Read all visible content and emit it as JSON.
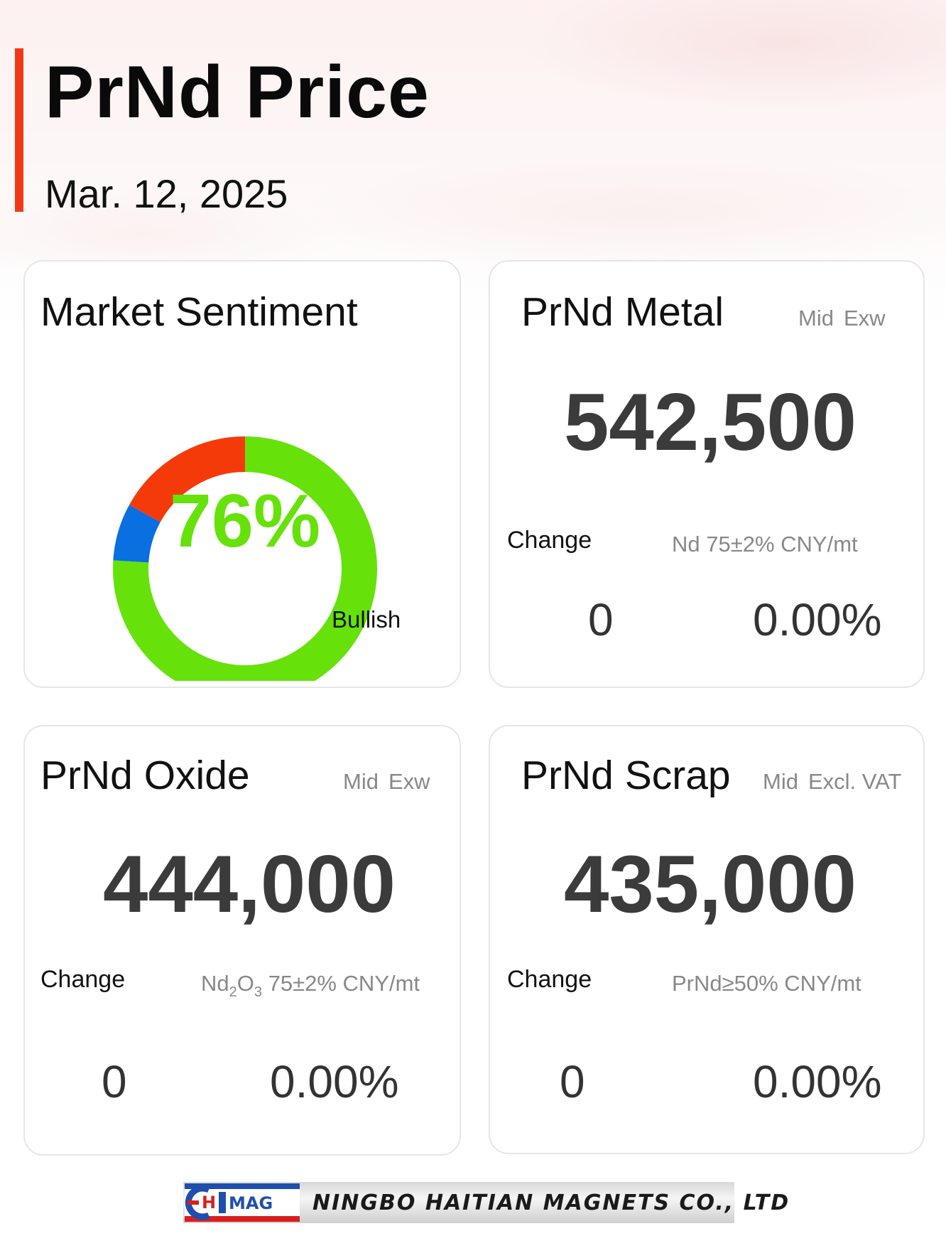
{
  "header": {
    "title": "PrNd Price",
    "date": "Mar. 12, 2025"
  },
  "sentiment": {
    "title": "Market Sentiment",
    "percent_label": "76%",
    "legend_label": "Bullish",
    "segments": [
      {
        "label": "Bullish",
        "value": 76,
        "color": "#66e20a"
      },
      {
        "label": "",
        "value": 7,
        "color": "#0a6fe0"
      },
      {
        "label": "",
        "value": 17,
        "color": "#f53a0a"
      }
    ]
  },
  "metal": {
    "title": "PrNd Metal",
    "meta": [
      "Mid",
      "Exw"
    ],
    "price": "542,500",
    "change_label": "Change",
    "spec": "Nd 75±2% CNY/mt",
    "change_abs": "0",
    "change_pct": "0.00%"
  },
  "oxide": {
    "title": "PrNd Oxide",
    "meta": [
      "Mid",
      "Exw"
    ],
    "price": "444,000",
    "change_label": "Change",
    "spec_prefix": "Nd",
    "spec_sub1": "2",
    "spec_mid": "O",
    "spec_sub2": "3",
    "spec_suffix": " 75±2% CNY/mt",
    "change_abs": "0",
    "change_pct": "0.00%"
  },
  "scrap": {
    "title": "PrNd Scrap",
    "meta": [
      "Mid",
      "Excl. VAT"
    ],
    "price": "435,000",
    "change_label": "Change",
    "spec": "PrNd≥50% CNY/mt",
    "change_abs": "0",
    "change_pct": "0.00%"
  },
  "footer": {
    "logo_text": "HTMAG",
    "company": "NINGBO HAITIAN MAGNETS CO., LTD"
  }
}
